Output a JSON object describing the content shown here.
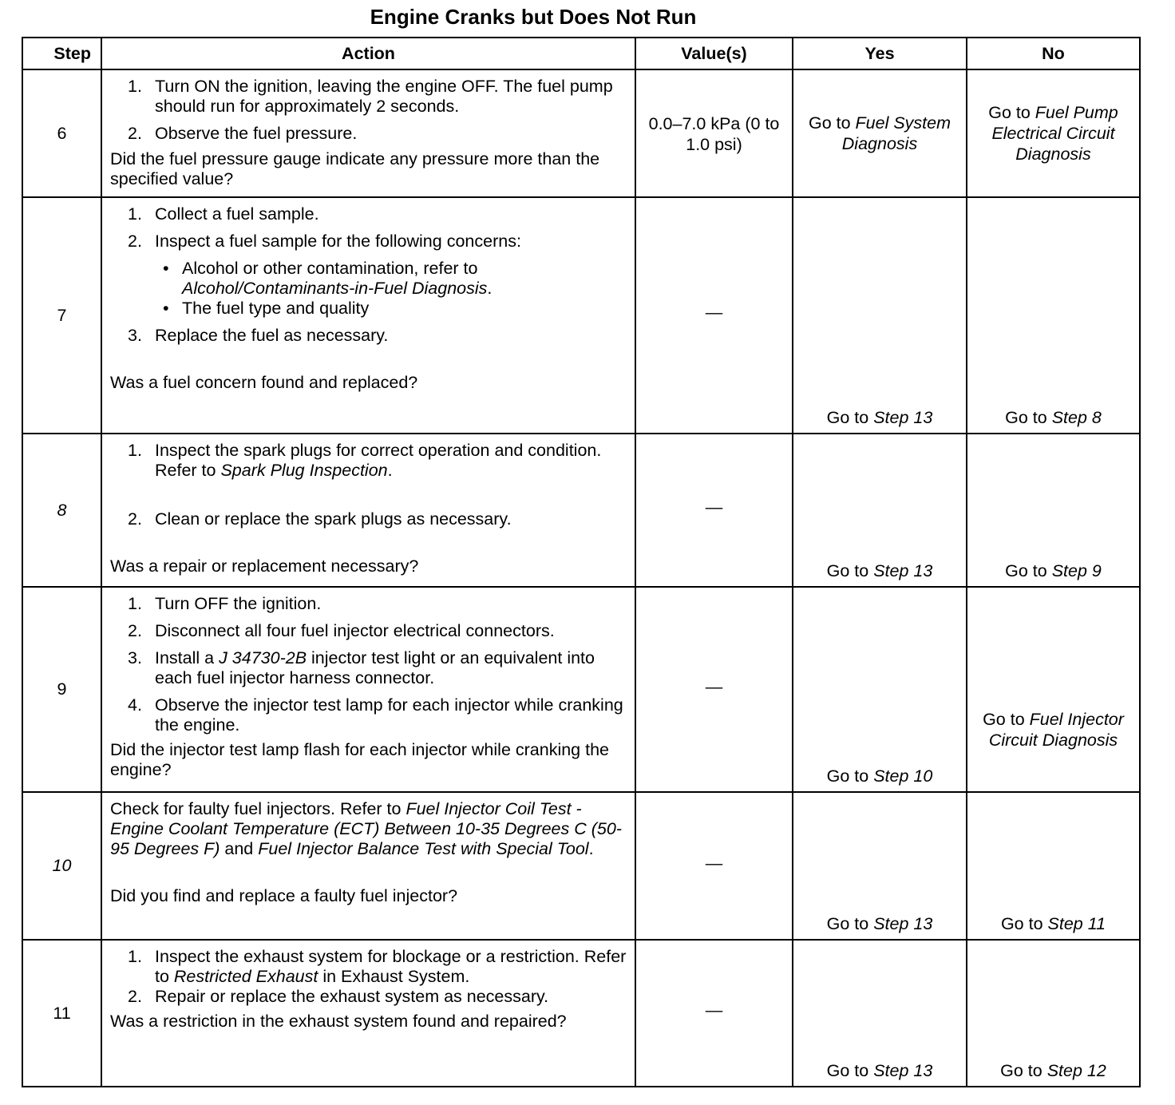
{
  "title": "Engine Cranks but Does Not Run",
  "headers": {
    "step": "Step",
    "action": "Action",
    "values": "Value(s)",
    "yes": "Yes",
    "no": "No"
  },
  "rows": [
    {
      "step": "6",
      "step_italic": false,
      "items": [
        {
          "type": "num",
          "n": "1.",
          "runs": [
            {
              "t": "Turn ON the ignition, leaving the engine OFF. The fuel pump should run for approximately 2 seconds.",
              "i": false
            }
          ]
        },
        {
          "type": "num",
          "n": "2.",
          "runs": [
            {
              "t": "Observe the fuel pressure.",
              "i": false
            }
          ]
        }
      ],
      "question": [
        {
          "t": "Did the fuel pressure gauge indicate any pressure more than the specified value?",
          "i": false
        }
      ],
      "value": "0.0–7.0 kPa (0 to 1.0 psi)",
      "yes": [
        {
          "t": "Go to ",
          "i": false
        },
        {
          "t": "Fuel System Diagnosis",
          "i": true
        }
      ],
      "no": [
        {
          "t": "Go to ",
          "i": false
        },
        {
          "t": "Fuel Pump Electrical Circuit Diagnosis",
          "i": true
        }
      ]
    },
    {
      "step": "7",
      "step_italic": false,
      "items": [
        {
          "type": "num",
          "n": "1.",
          "runs": [
            {
              "t": "Collect a fuel sample.",
              "i": false
            }
          ]
        },
        {
          "type": "num",
          "n": "2.",
          "runs": [
            {
              "t": "Inspect a fuel sample for the following concerns:",
              "i": false
            }
          ]
        },
        {
          "type": "bullet",
          "n": "•",
          "runs": [
            {
              "t": "Alcohol or other contamination, refer to ",
              "i": false
            },
            {
              "t": "Alcohol/Contaminants-in-Fuel Diagnosis",
              "i": true
            },
            {
              "t": ".",
              "i": false
            }
          ]
        },
        {
          "type": "bullet",
          "n": "•",
          "runs": [
            {
              "t": "The fuel type and quality",
              "i": false
            }
          ]
        },
        {
          "type": "num",
          "n": "3.",
          "runs": [
            {
              "t": "Replace the fuel as necessary.",
              "i": false
            }
          ]
        }
      ],
      "question": [
        {
          "t": "Was a fuel concern found and replaced?",
          "i": false
        }
      ],
      "value": "—",
      "yes": [
        {
          "t": "Go to ",
          "i": false
        },
        {
          "t": "Step 13",
          "i": true
        }
      ],
      "no": [
        {
          "t": "Go to ",
          "i": false
        },
        {
          "t": "Step 8",
          "i": true
        }
      ]
    },
    {
      "step": "8",
      "step_italic": true,
      "items": [
        {
          "type": "num",
          "n": "1.",
          "runs": [
            {
              "t": "Inspect the spark plugs for correct operation and condition. Refer to ",
              "i": false
            },
            {
              "t": "Spark Plug Inspection",
              "i": true
            },
            {
              "t": ".",
              "i": false
            }
          ]
        },
        {
          "type": "num",
          "n": "2.",
          "runs": [
            {
              "t": "Clean or replace the spark plugs as necessary.",
              "i": false
            }
          ]
        }
      ],
      "question": [
        {
          "t": "Was a repair or replacement necessary?",
          "i": false
        }
      ],
      "value": "—",
      "yes": [
        {
          "t": "Go to ",
          "i": false
        },
        {
          "t": "Step 13",
          "i": true
        }
      ],
      "no": [
        {
          "t": "Go to ",
          "i": false
        },
        {
          "t": "Step 9",
          "i": true
        }
      ]
    },
    {
      "step": "9",
      "step_italic": false,
      "items": [
        {
          "type": "num",
          "n": "1.",
          "runs": [
            {
              "t": "Turn OFF the ignition.",
              "i": false
            }
          ]
        },
        {
          "type": "num",
          "n": "2.",
          "runs": [
            {
              "t": "Disconnect all four fuel injector electrical connectors.",
              "i": false
            }
          ]
        },
        {
          "type": "num",
          "n": "3.",
          "runs": [
            {
              "t": "Install a ",
              "i": false
            },
            {
              "t": "J 34730-2B",
              "i": true
            },
            {
              "t": " injector test light or an equivalent into each fuel injector harness connector.",
              "i": false
            }
          ]
        },
        {
          "type": "num",
          "n": "4.",
          "runs": [
            {
              "t": "Observe the injector test lamp for each injector while cranking the engine.",
              "i": false
            }
          ]
        }
      ],
      "question": [
        {
          "t": "Did the injector test lamp flash for each injector while cranking the engine?",
          "i": false
        }
      ],
      "value": "—",
      "yes": [
        {
          "t": "Go to ",
          "i": false
        },
        {
          "t": "Step 10",
          "i": true
        }
      ],
      "no": [
        {
          "t": "Go to ",
          "i": false
        },
        {
          "t": "Fuel Injector Circuit Diagnosis",
          "i": true
        }
      ]
    },
    {
      "step": "10",
      "step_italic": true,
      "items": [
        {
          "type": "para",
          "n": "",
          "runs": [
            {
              "t": "Check for faulty fuel injectors. Refer to ",
              "i": false
            },
            {
              "t": "Fuel Injector Coil Test - Engine Coolant Temperature (ECT) Between 10-35 Degrees C (50-95 Degrees F)",
              "i": true
            },
            {
              "t": " and ",
              "i": false
            },
            {
              "t": "Fuel Injector Balance Test with Special Tool",
              "i": true
            },
            {
              "t": ".",
              "i": false
            }
          ]
        }
      ],
      "question": [
        {
          "t": "Did you find and replace a faulty fuel injector?",
          "i": false
        }
      ],
      "value": "—",
      "yes": [
        {
          "t": "Go to ",
          "i": false
        },
        {
          "t": "Step 13",
          "i": true
        }
      ],
      "no": [
        {
          "t": "Go to ",
          "i": false
        },
        {
          "t": "Step 11",
          "i": true
        }
      ]
    },
    {
      "step": "11",
      "step_italic": false,
      "items": [
        {
          "type": "num",
          "n": "1.",
          "runs": [
            {
              "t": "Inspect the exhaust system for blockage or a restriction. Refer to ",
              "i": false
            },
            {
              "t": "Restricted Exhaust",
              "i": true
            },
            {
              "t": "  in Exhaust  System.",
              "i": false
            }
          ]
        },
        {
          "type": "num",
          "n": "2.",
          "runs": [
            {
              "t": "Repair or replace the exhaust system as necessary.",
              "i": false
            }
          ]
        }
      ],
      "question": [
        {
          "t": "Was a restriction in the exhaust system found and repaired?",
          "i": false
        }
      ],
      "value": "—",
      "yes": [
        {
          "t": "Go to ",
          "i": false
        },
        {
          "t": "Step 13",
          "i": true
        }
      ],
      "no": [
        {
          "t": "Go to ",
          "i": false
        },
        {
          "t": "Step 12",
          "i": true
        }
      ]
    }
  ]
}
